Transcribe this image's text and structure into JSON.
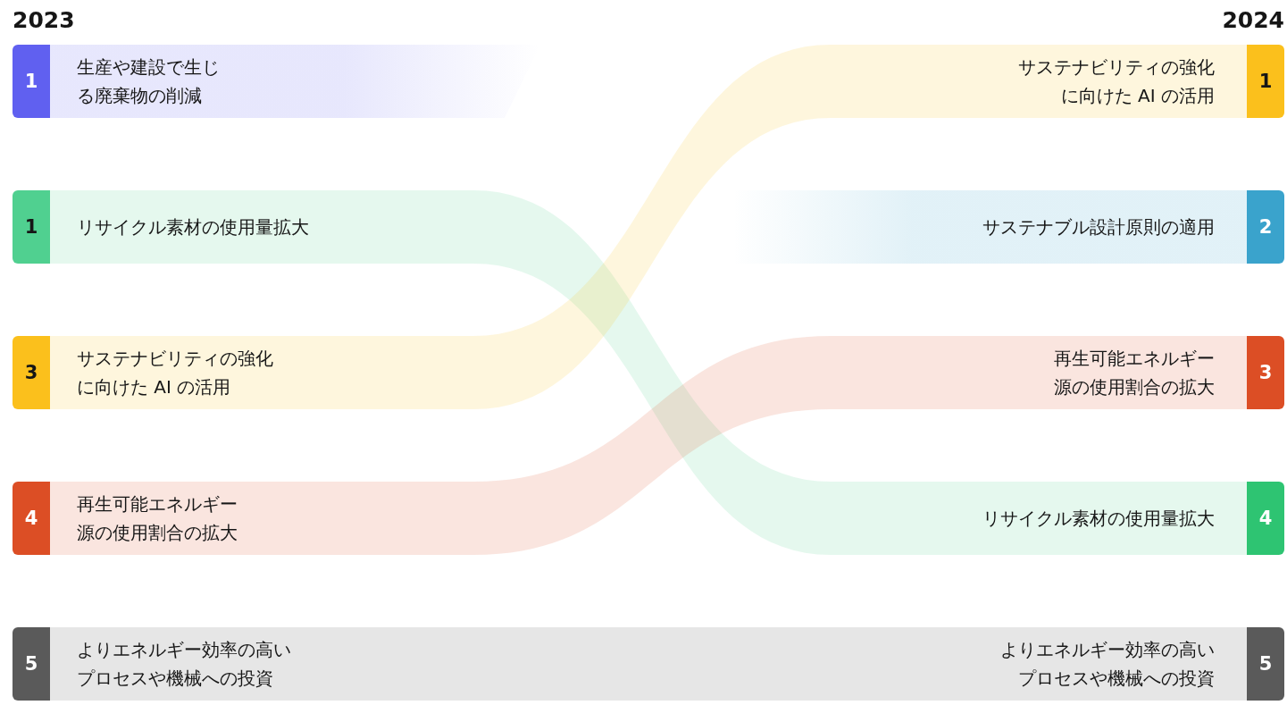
{
  "chart_data": {
    "type": "other",
    "categories": [
      "2023",
      "2024"
    ],
    "series": [
      {
        "name": "生産や建設で生じる廃棄物の削減",
        "colors": [
          "#6060f0",
          null
        ],
        "values": [
          1,
          null
        ],
        "value_labels": [
          "1",
          null
        ]
      },
      {
        "name": "リサイクル素材の使用量拡大",
        "colors": [
          "#50d090",
          "#2ec472"
        ],
        "values": [
          1,
          4
        ],
        "value_labels": [
          "1",
          "4"
        ]
      },
      {
        "name": "サステナビリティの強化に向けた AI の活用",
        "colors": [
          "#fbc01c",
          "#fbc01c"
        ],
        "values": [
          3,
          1
        ],
        "value_labels": [
          "3",
          "1"
        ]
      },
      {
        "name": "再生可能エネルギー源の使用割合の拡大",
        "colors": [
          "#dc4e25",
          "#dc4e25"
        ],
        "values": [
          4,
          3
        ],
        "value_labels": [
          "4",
          "3"
        ]
      },
      {
        "name": "サステナブル設計原則の適用",
        "colors": [
          null,
          "#3aa3cc"
        ],
        "values": [
          null,
          2
        ],
        "value_labels": [
          null,
          "2"
        ]
      },
      {
        "name": "よりエネルギー効率の高いプロセスや機械への投資",
        "colors": [
          "#5a5a5a",
          "#5a5a5a"
        ],
        "values": [
          5,
          5
        ],
        "value_labels": [
          "5",
          "5"
        ]
      }
    ]
  }
}
